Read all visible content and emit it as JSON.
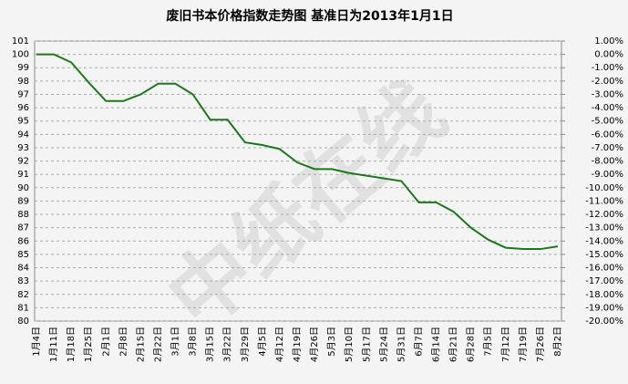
{
  "chart_data": {
    "type": "line",
    "title": "废旧书本价格指数走势图 基准日为2013年1月1日",
    "watermark": "中纸在线",
    "categories": [
      "1月4日",
      "1月11日",
      "1月18日",
      "1月25日",
      "2月1日",
      "2月8日",
      "2月15日",
      "2月22日",
      "3月1日",
      "3月8日",
      "3月15日",
      "3月22日",
      "3月29日",
      "4月5日",
      "4月12日",
      "4月19日",
      "4月26日",
      "5月3日",
      "5月10日",
      "5月17日",
      "5月24日",
      "5月31日",
      "6月7日",
      "6月14日",
      "6月21日",
      "6月28日",
      "7月5日",
      "7月12日",
      "7月19日",
      "7月26日",
      "8月2日"
    ],
    "series": [
      {
        "color": "#1a7a1a",
        "values": [
          100,
          100,
          99.4,
          97.9,
          96.5,
          96.5,
          97.0,
          97.8,
          97.8,
          97.0,
          95.1,
          95.1,
          93.4,
          93.2,
          92.9,
          91.9,
          91.4,
          91.4,
          91.1,
          90.9,
          90.7,
          90.5,
          88.9,
          88.9,
          88.2,
          87.0,
          86.1,
          85.5,
          85.4,
          85.4,
          85.6
        ]
      }
    ],
    "ylim": [
      80,
      101
    ],
    "yticks": [
      80,
      81,
      82,
      83,
      84,
      85,
      86,
      87,
      88,
      89,
      90,
      91,
      92,
      93,
      94,
      95,
      96,
      97,
      98,
      99,
      100,
      101
    ],
    "y2lim": [
      -20,
      1
    ],
    "y2ticks": [
      {
        "value": 1,
        "label": "1.00%"
      },
      {
        "value": 0,
        "label": "0.00%"
      },
      {
        "value": -1,
        "label": "-1.00%"
      },
      {
        "value": -2,
        "label": "-2.00%"
      },
      {
        "value": -3,
        "label": "-3.00%"
      },
      {
        "value": -4,
        "label": "-4.00%"
      },
      {
        "value": -5,
        "label": "-5.00%"
      },
      {
        "value": -6,
        "label": "-6.00%"
      },
      {
        "value": -7,
        "label": "-7.00%"
      },
      {
        "value": -8,
        "label": "-8.00%"
      },
      {
        "value": -9,
        "label": "-9.00%"
      },
      {
        "value": -10,
        "label": "-10.00%"
      },
      {
        "value": -11,
        "label": "-11.00%"
      },
      {
        "value": -12,
        "label": "-12.00%"
      },
      {
        "value": -13,
        "label": "-13.00%"
      },
      {
        "value": -14,
        "label": "-14.00%"
      },
      {
        "value": -15,
        "label": "-15.00%"
      },
      {
        "value": -16,
        "label": "-16.00%"
      },
      {
        "value": -17,
        "label": "-17.00%"
      },
      {
        "value": -18,
        "label": "-18.00%"
      },
      {
        "value": -19,
        "label": "-19.00%"
      },
      {
        "value": -20,
        "label": "-20.00%"
      }
    ],
    "grid": true
  }
}
